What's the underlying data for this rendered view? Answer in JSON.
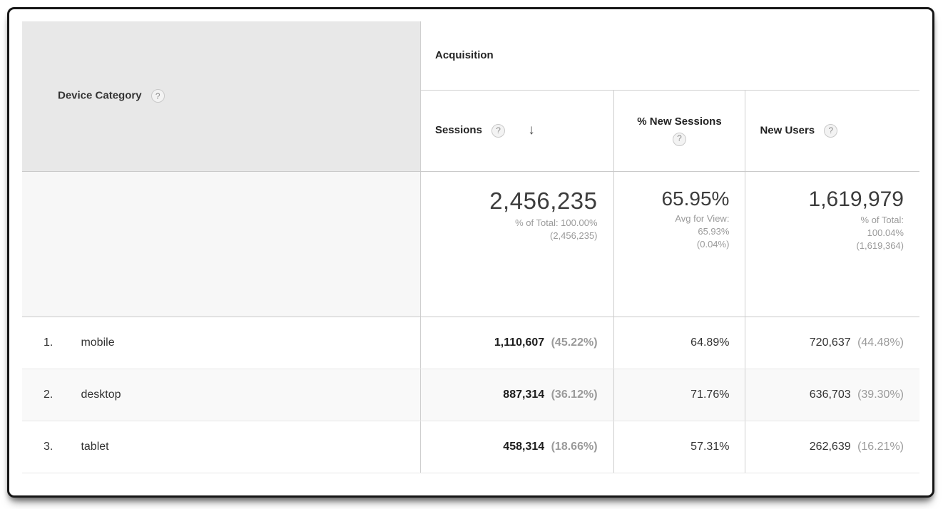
{
  "icons": {
    "help": "?",
    "sort_desc": "↓"
  },
  "colors": {
    "header_bg": "#e8e8e8",
    "alt_row_bg": "#f9f9f9",
    "border": "#c9c9c9",
    "muted_text": "#9a9a9a",
    "frame_border": "#161616"
  },
  "table": {
    "dimension_header": {
      "label": "Device Category"
    },
    "group_header": {
      "label": "Acquisition"
    },
    "columns": [
      {
        "label": "Sessions",
        "sorted": "desc"
      },
      {
        "label": "% New Sessions"
      },
      {
        "label": "New Users"
      }
    ],
    "summary": {
      "sessions": {
        "value": "2,456,235",
        "subtext": [
          "% of Total: 100.00%",
          "(2,456,235)"
        ]
      },
      "new_sessions": {
        "value": "65.95%",
        "subtext": [
          "Avg for View:",
          "65.93%",
          "(0.04%)"
        ]
      },
      "new_users": {
        "value": "1,619,979",
        "subtext": [
          "% of Total:",
          "100.04%",
          "(1,619,364)"
        ]
      }
    },
    "rows": [
      {
        "index": "1.",
        "category": "mobile",
        "sessions": "1,110,607",
        "sessions_pct": "(45.22%)",
        "new_sessions": "64.89%",
        "new_users": "720,637",
        "new_users_pct": "(44.48%)"
      },
      {
        "index": "2.",
        "category": "desktop",
        "sessions": "887,314",
        "sessions_pct": "(36.12%)",
        "new_sessions": "71.76%",
        "new_users": "636,703",
        "new_users_pct": "(39.30%)"
      },
      {
        "index": "3.",
        "category": "tablet",
        "sessions": "458,314",
        "sessions_pct": "(18.66%)",
        "new_sessions": "57.31%",
        "new_users": "262,639",
        "new_users_pct": "(16.21%)"
      }
    ]
  }
}
